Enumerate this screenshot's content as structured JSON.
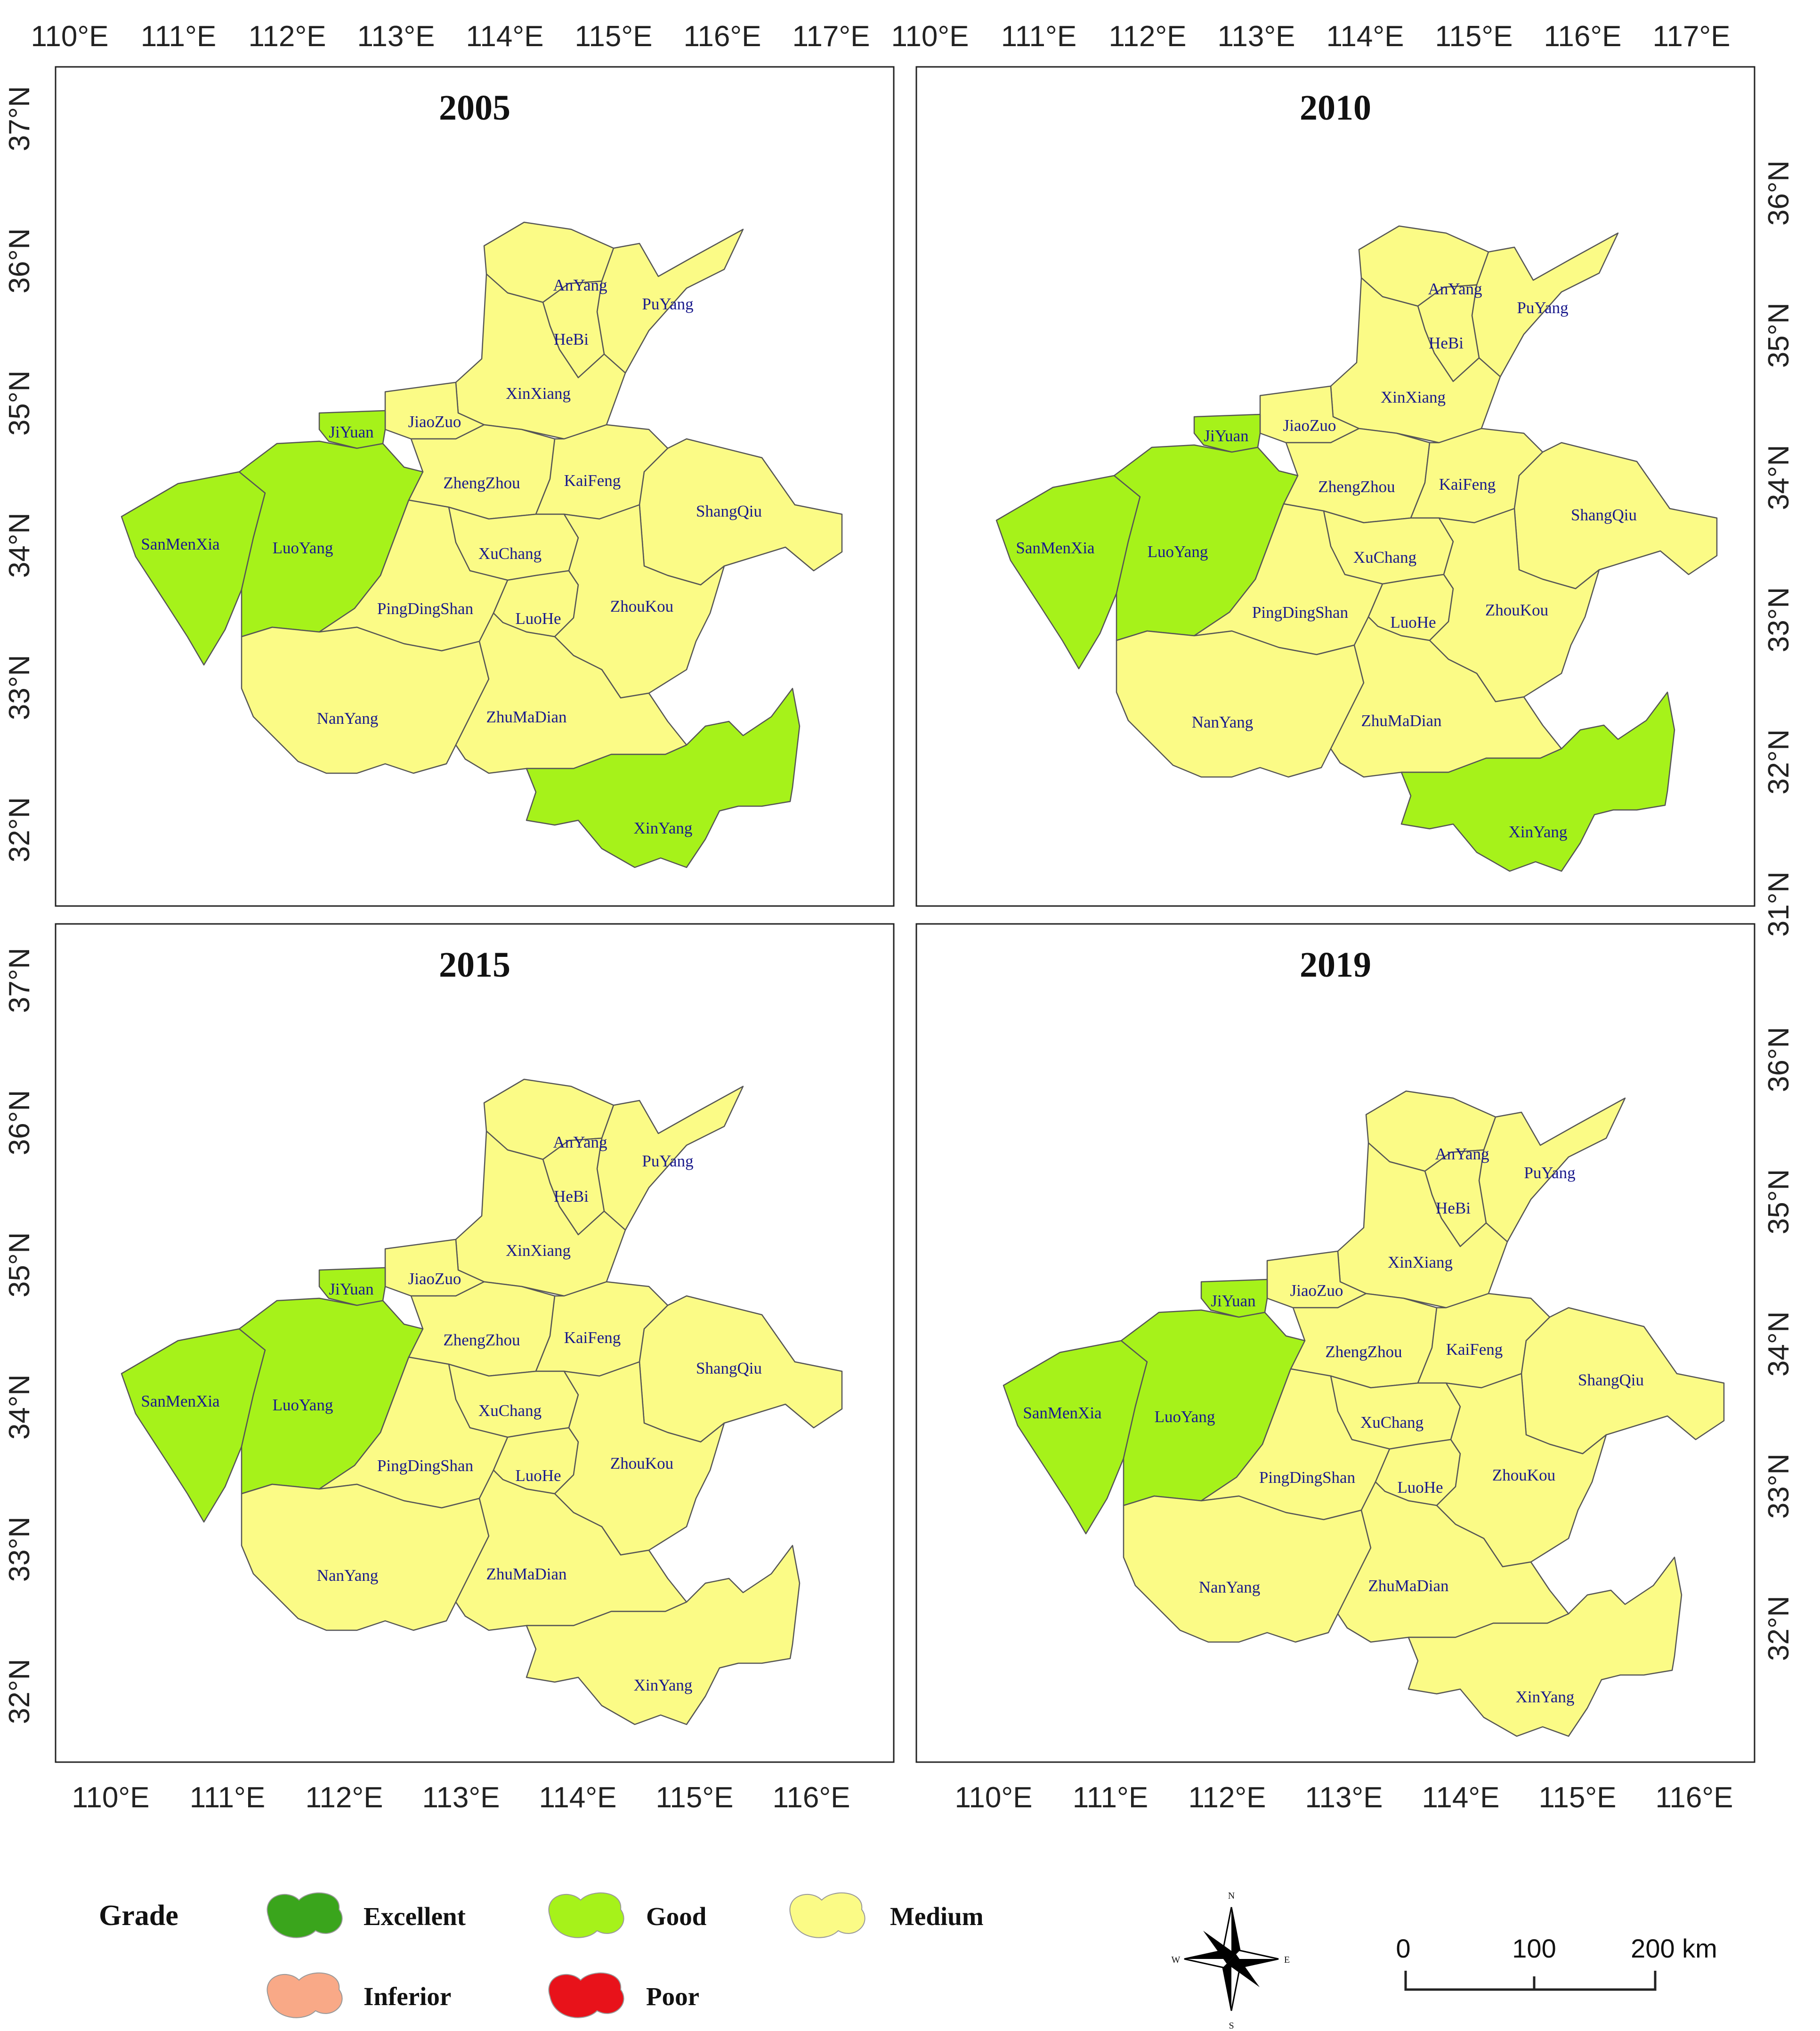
{
  "colors": {
    "excellent": "#3aa51c",
    "good": "#a6f21a",
    "medium": "#fbfb86",
    "inferior": "#f9a987",
    "poor": "#e8121a",
    "label_text": "#1a1a8c",
    "boundary": "#555555",
    "frame": "#222222"
  },
  "axes": {
    "lon_ticks_top": [
      "110°E",
      "111°E",
      "112°E",
      "113°E",
      "114°E",
      "115°E",
      "116°E",
      "117°E"
    ],
    "lon_ticks_bottom": [
      "110°E",
      "111°E",
      "112°E",
      "113°E",
      "114°E",
      "115°E",
      "116°E"
    ],
    "lat_ticks_left_top": [
      "37°N",
      "36°N",
      "35°N",
      "34°N",
      "33°N",
      "32°N"
    ],
    "lat_ticks_right_top": [
      "36°N",
      "35°N",
      "34°N",
      "33°N",
      "32°N",
      "31°N"
    ],
    "lat_ticks_left_bottom": [
      "37°N",
      "36°N",
      "35°N",
      "34°N",
      "33°N",
      "32°N"
    ],
    "lat_ticks_right_bottom": [
      "36°N",
      "35°N",
      "34°N",
      "33°N",
      "32°N"
    ]
  },
  "cities": [
    "AnYang",
    "PuYang",
    "HeBi",
    "XinXiang",
    "JiaoZuo",
    "JiYuan",
    "ZhengZhou",
    "KaiFeng",
    "ShangQiu",
    "SanMenXia",
    "LuoYang",
    "XuChang",
    "PingDingShan",
    "LuoHe",
    "ZhouKou",
    "NanYang",
    "ZhuMaDian",
    "XinYang"
  ],
  "panels": [
    {
      "year": "2005",
      "grades": {
        "JiYuan": "good",
        "SanMenXia": "good",
        "LuoYang": "good",
        "XinYang": "good"
      }
    },
    {
      "year": "2010",
      "grades": {
        "JiYuan": "good",
        "SanMenXia": "good",
        "LuoYang": "good",
        "XinYang": "good"
      }
    },
    {
      "year": "2015",
      "grades": {
        "JiYuan": "good",
        "SanMenXia": "good",
        "LuoYang": "good"
      }
    },
    {
      "year": "2019",
      "grades": {
        "JiYuan": "good",
        "SanMenXia": "good",
        "LuoYang": "good"
      }
    }
  ],
  "default_grade": "medium",
  "legend": {
    "title": "Grade",
    "items": [
      {
        "key": "excellent",
        "label": "Excellent"
      },
      {
        "key": "good",
        "label": "Good"
      },
      {
        "key": "medium",
        "label": "Medium"
      },
      {
        "key": "inferior",
        "label": "Inferior"
      },
      {
        "key": "poor",
        "label": "Poor"
      }
    ]
  },
  "compass": {
    "n": "N",
    "s": "S",
    "e": "E",
    "w": "W"
  },
  "scale_bar": {
    "ticks": [
      "0",
      "100",
      "200 km"
    ]
  }
}
